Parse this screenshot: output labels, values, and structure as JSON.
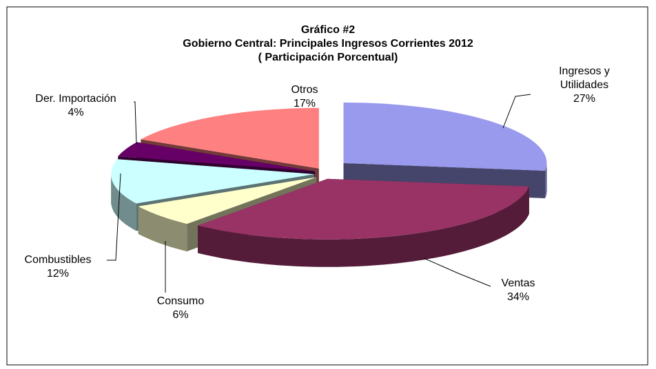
{
  "chart_data": {
    "type": "pie3d",
    "title": [
      "Gráfico #2",
      "Gobierno Central: Principales Ingresos Corrientes 2012",
      "( Participación Porcentual)"
    ],
    "categories": [
      "Ingresos y Utilidades",
      "Ventas",
      "Consumo",
      "Combustibles",
      "Der. Importación",
      "Otros"
    ],
    "values": [
      27,
      34,
      6,
      12,
      4,
      17
    ],
    "value_labels": [
      "27%",
      "34%",
      "6%",
      "12%",
      "4%",
      "17%"
    ],
    "colors": [
      "#9999ee",
      "#993366",
      "#ffffcc",
      "#ccffff",
      "#660066",
      "#ff8080"
    ]
  }
}
